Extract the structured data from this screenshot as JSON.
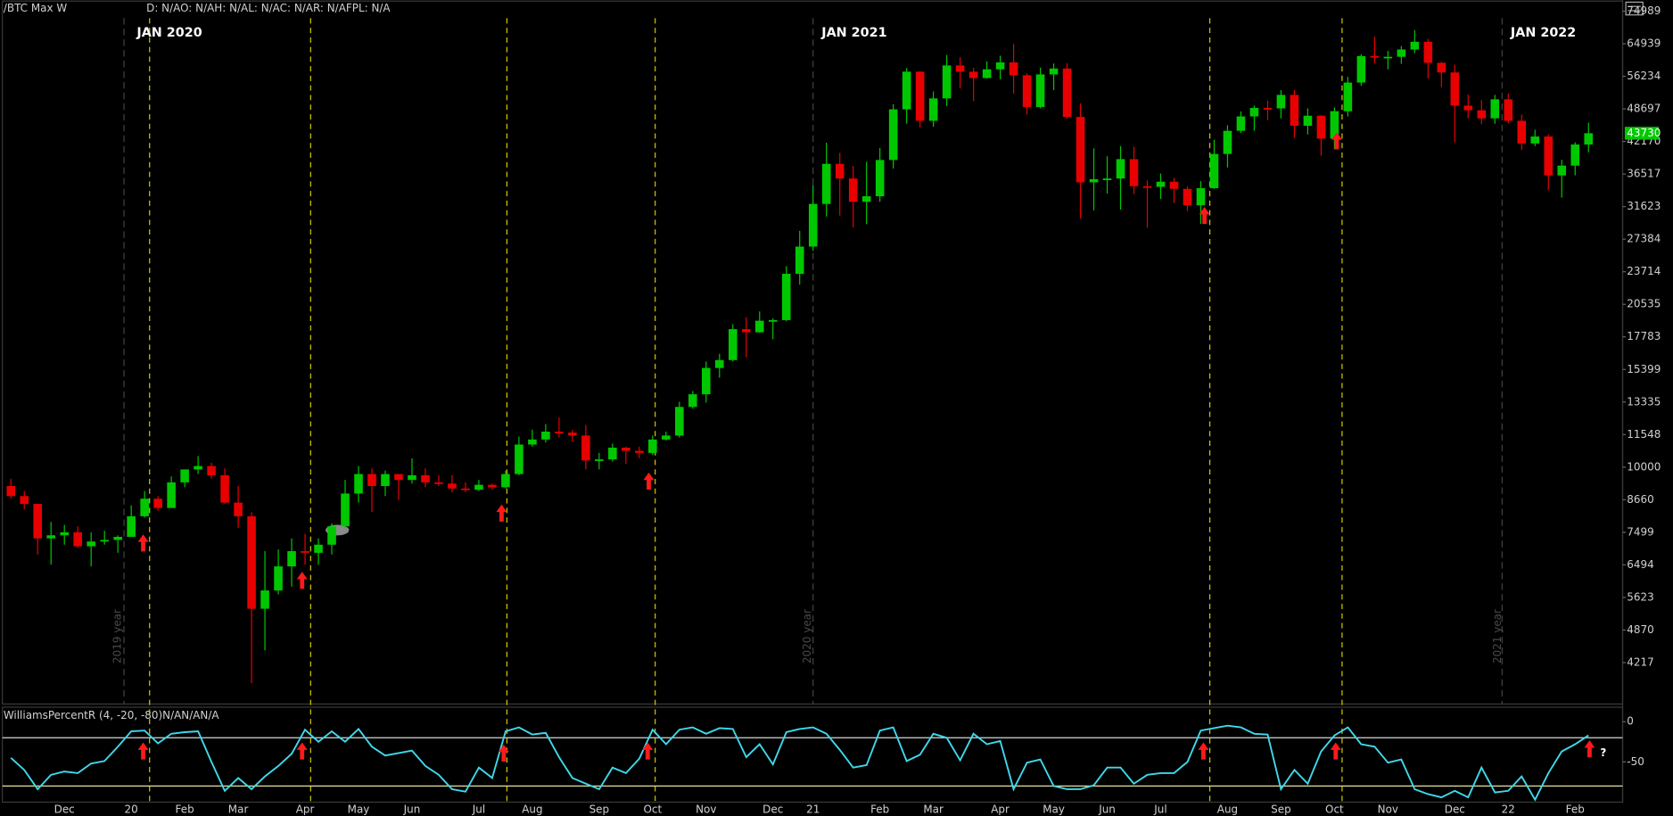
{
  "header": {
    "symbol": "/BTC Max W",
    "quote": "D: N/AO: N/AH: N/AL: N/AC: N/AR: N/AFPL: N/A"
  },
  "chart_data": [
    {
      "type": "candlestick",
      "annotations": [
        "JAN 2020",
        "JAN 2021",
        "JAN 2022"
      ],
      "year_labels": [
        "2019 year",
        "2020 year",
        "2021 year"
      ],
      "categories": [
        null,
        null,
        null,
        null,
        "Dec",
        null,
        null,
        null,
        null,
        "20",
        null,
        null,
        null,
        "Feb",
        null,
        null,
        null,
        "Mar",
        null,
        null,
        null,
        null,
        "Apr",
        null,
        null,
        null,
        "May",
        null,
        null,
        null,
        "Jun",
        null,
        null,
        null,
        null,
        "Jul",
        null,
        null,
        null,
        "Aug",
        null,
        null,
        null,
        null,
        "Sep",
        null,
        null,
        null,
        "Oct",
        null,
        null,
        null,
        "Nov",
        null,
        null,
        null,
        null,
        "Dec",
        null,
        null,
        "21",
        null,
        null,
        null,
        null,
        "Feb",
        null,
        null,
        null,
        "Mar",
        null,
        null,
        null,
        null,
        "Apr",
        null,
        null,
        null,
        "May",
        null,
        null,
        null,
        "Jun",
        null,
        null,
        null,
        "Jul",
        null,
        null,
        null,
        null,
        "Aug",
        null,
        null,
        null,
        "Sep",
        null,
        null,
        null,
        "Oct",
        null,
        null,
        null,
        "Nov",
        null,
        null,
        null,
        null,
        "Dec",
        null,
        null,
        null,
        "22",
        null,
        null,
        null,
        null,
        "Feb",
        null
      ],
      "open": [
        9200,
        8800,
        8500,
        7300,
        7400,
        7500,
        7050,
        7200,
        7250,
        7350,
        8050,
        8700,
        8350,
        9350,
        9900,
        10050,
        9650,
        8550,
        8050,
        5350,
        5800,
        6450,
        6900,
        6850,
        7100,
        7700,
        8900,
        9700,
        9200,
        9700,
        9450,
        9650,
        9350,
        9300,
        9100,
        9050,
        9250,
        9150,
        9700,
        11050,
        11300,
        11700,
        11650,
        11500,
        10300,
        10350,
        10900,
        10750,
        10650,
        11300,
        11500,
        13050,
        13800,
        15500,
        16050,
        18400,
        18150,
        19100,
        19150,
        23500,
        26500,
        32000,
        38200,
        35800,
        32300,
        33100,
        38850,
        48600,
        57400,
        46200,
        51000,
        59000,
        57400,
        55800,
        58000,
        59800,
        56500,
        49100,
        56700,
        58200,
        47000,
        35200,
        35700,
        35800,
        39000,
        34600,
        34500,
        35300,
        34200,
        31800,
        34300,
        39900,
        44200,
        47100,
        48900,
        48800,
        51800,
        45200,
        47250,
        42700,
        48200,
        54700,
        61500,
        61100,
        61300,
        63300,
        65500,
        59700,
        57200,
        49400,
        48400,
        46700,
        50800,
        46200,
        41800,
        43100,
        36300,
        37900,
        41600
      ],
      "high": [
        9500,
        9000,
        8500,
        7850,
        7750,
        7700,
        7500,
        7550,
        7400,
        8450,
        9000,
        8800,
        9600,
        9900,
        10500,
        10200,
        9950,
        9200,
        8200,
        6900,
        6950,
        7300,
        7450,
        7300,
        7800,
        9450,
        10050,
        9950,
        9850,
        9700,
        10400,
        9950,
        9650,
        9650,
        9350,
        9450,
        9300,
        9850,
        11450,
        11800,
        12100,
        12450,
        11800,
        12050,
        10650,
        11100,
        10950,
        10950,
        11500,
        11700,
        13350,
        14000,
        15950,
        16500,
        18800,
        19400,
        19900,
        19300,
        24300,
        28400,
        34800,
        41950,
        40100,
        37850,
        38550,
        40950,
        49700,
        58350,
        57500,
        52600,
        61800,
        61200,
        58400,
        60100,
        61600,
        64900,
        57000,
        58450,
        59500,
        59600,
        49900,
        40900,
        39500,
        41300,
        41200,
        35500,
        36600,
        35900,
        34600,
        35400,
        42500,
        45300,
        48150,
        49400,
        50500,
        52900,
        52900,
        48800,
        47350,
        49000,
        56100,
        62000,
        67000,
        62900,
        64300,
        69000,
        66300,
        59900,
        59200,
        51900,
        50600,
        51800,
        52100,
        47500,
        44400,
        43500,
        38900,
        42000,
        45800
      ],
      "low": [
        8700,
        8300,
        6800,
        6500,
        7100,
        7000,
        6450,
        7100,
        6850,
        7350,
        8000,
        8250,
        8350,
        9150,
        9700,
        9500,
        8500,
        7650,
        3850,
        4450,
        5700,
        5900,
        6500,
        6500,
        6800,
        7650,
        8550,
        8200,
        8800,
        8650,
        9300,
        9150,
        9200,
        8950,
        8950,
        9000,
        9050,
        9100,
        9650,
        10950,
        11150,
        11400,
        11200,
        9900,
        9900,
        10250,
        10150,
        10400,
        10550,
        11250,
        11400,
        12950,
        13300,
        14850,
        15950,
        16250,
        18100,
        17600,
        19050,
        22400,
        26000,
        30250,
        30400,
        28850,
        29250,
        32300,
        37400,
        45600,
        44900,
        45000,
        49300,
        53300,
        50400,
        55700,
        55500,
        52100,
        47500,
        48800,
        52900,
        46600,
        30000,
        31100,
        33500,
        31200,
        33400,
        28800,
        32700,
        32100,
        31000,
        29300,
        34200,
        37600,
        43800,
        44200,
        46300,
        46700,
        42850,
        43500,
        39600,
        40750,
        47100,
        53900,
        59600,
        58000,
        59400,
        62300,
        55700,
        53600,
        42000,
        46700,
        45500,
        45600,
        45700,
        40600,
        41300,
        34000,
        32900,
        36300,
        40200
      ],
      "close": [
        8800,
        8500,
        7300,
        7400,
        7500,
        7050,
        7200,
        7250,
        7350,
        8050,
        8700,
        8350,
        9350,
        9900,
        10050,
        9650,
        8550,
        8050,
        5350,
        5800,
        6450,
        6900,
        6850,
        7100,
        7700,
        8900,
        9700,
        9200,
        9700,
        9450,
        9650,
        9350,
        9300,
        9100,
        9050,
        9250,
        9150,
        9700,
        11050,
        11300,
        11700,
        11650,
        11500,
        10300,
        10350,
        10900,
        10750,
        10650,
        11300,
        11500,
        13050,
        13800,
        15500,
        16050,
        18400,
        18150,
        19100,
        19150,
        23500,
        26500,
        32000,
        38200,
        35800,
        32300,
        33100,
        38850,
        48600,
        57400,
        46200,
        51000,
        59000,
        57400,
        55800,
        58000,
        59800,
        56500,
        49100,
        56700,
        58200,
        47000,
        35200,
        35700,
        35800,
        39000,
        34600,
        34500,
        35300,
        34200,
        31800,
        34300,
        39900,
        44200,
        47100,
        48900,
        48800,
        51800,
        45200,
        47250,
        42700,
        48200,
        54700,
        61500,
        61100,
        61300,
        63300,
        65500,
        59700,
        57200,
        49400,
        48400,
        46700,
        50800,
        46200,
        41800,
        43100,
        36300,
        37900,
        41600,
        43730
      ],
      "up_color": "#00c800",
      "down_color": "#e80000",
      "last_price": 43730,
      "log_scale": true,
      "ylim": [
        3512,
        78780
      ],
      "yticks": [
        4217,
        4870,
        5623,
        6494,
        7499,
        8660,
        10000,
        11548,
        13335,
        15399,
        17783,
        20535,
        23714,
        27384,
        31623,
        36517,
        42170,
        48697,
        56234,
        64939,
        74989
      ],
      "grid": false
    },
    {
      "type": "line",
      "title": "WilliamsPercentR (4, -20, -80)N/AN/AN/A",
      "annotation": "?",
      "color": "#3fd8ea",
      "values": [
        -45,
        -60,
        -84,
        -66,
        -62,
        -64,
        -52,
        -49,
        -31,
        -12,
        -11,
        -27,
        -15,
        -13,
        -12,
        -50,
        -86,
        -70,
        -84,
        -68,
        -55,
        -40,
        -10,
        -25,
        -12,
        -25,
        -9,
        -31,
        -42,
        -39,
        -36,
        -55,
        -66,
        -84,
        -87,
        -57,
        -70,
        -12,
        -7,
        -16,
        -14,
        -44,
        -70,
        -77,
        -84,
        -57,
        -64,
        -46,
        -10,
        -28,
        -10,
        -7,
        -15,
        -8,
        -9,
        -44,
        -28,
        -53,
        -13,
        -9,
        -7,
        -15,
        -35,
        -57,
        -54,
        -11,
        -7,
        -49,
        -41,
        -15,
        -20,
        -48,
        -15,
        -28,
        -24,
        -84,
        -51,
        -47,
        -80,
        -84,
        -84,
        -79,
        -57,
        -57,
        -77,
        -66,
        -64,
        -64,
        -50,
        -11,
        -8,
        -5,
        -7,
        -15,
        -16,
        -84,
        -60,
        -77,
        -37,
        -17,
        -7,
        -28,
        -31,
        -51,
        -47,
        -84,
        -90,
        -94,
        -86,
        -94,
        -57,
        -88,
        -86,
        -68,
        -97,
        -64,
        -37,
        -28,
        -17
      ],
      "levels": [
        -20,
        -80
      ],
      "level_colors": [
        "#d8d8d8",
        "#e8e0a0"
      ],
      "ylim": [
        -100,
        18
      ],
      "yticks": [
        0,
        -50
      ]
    }
  ]
}
